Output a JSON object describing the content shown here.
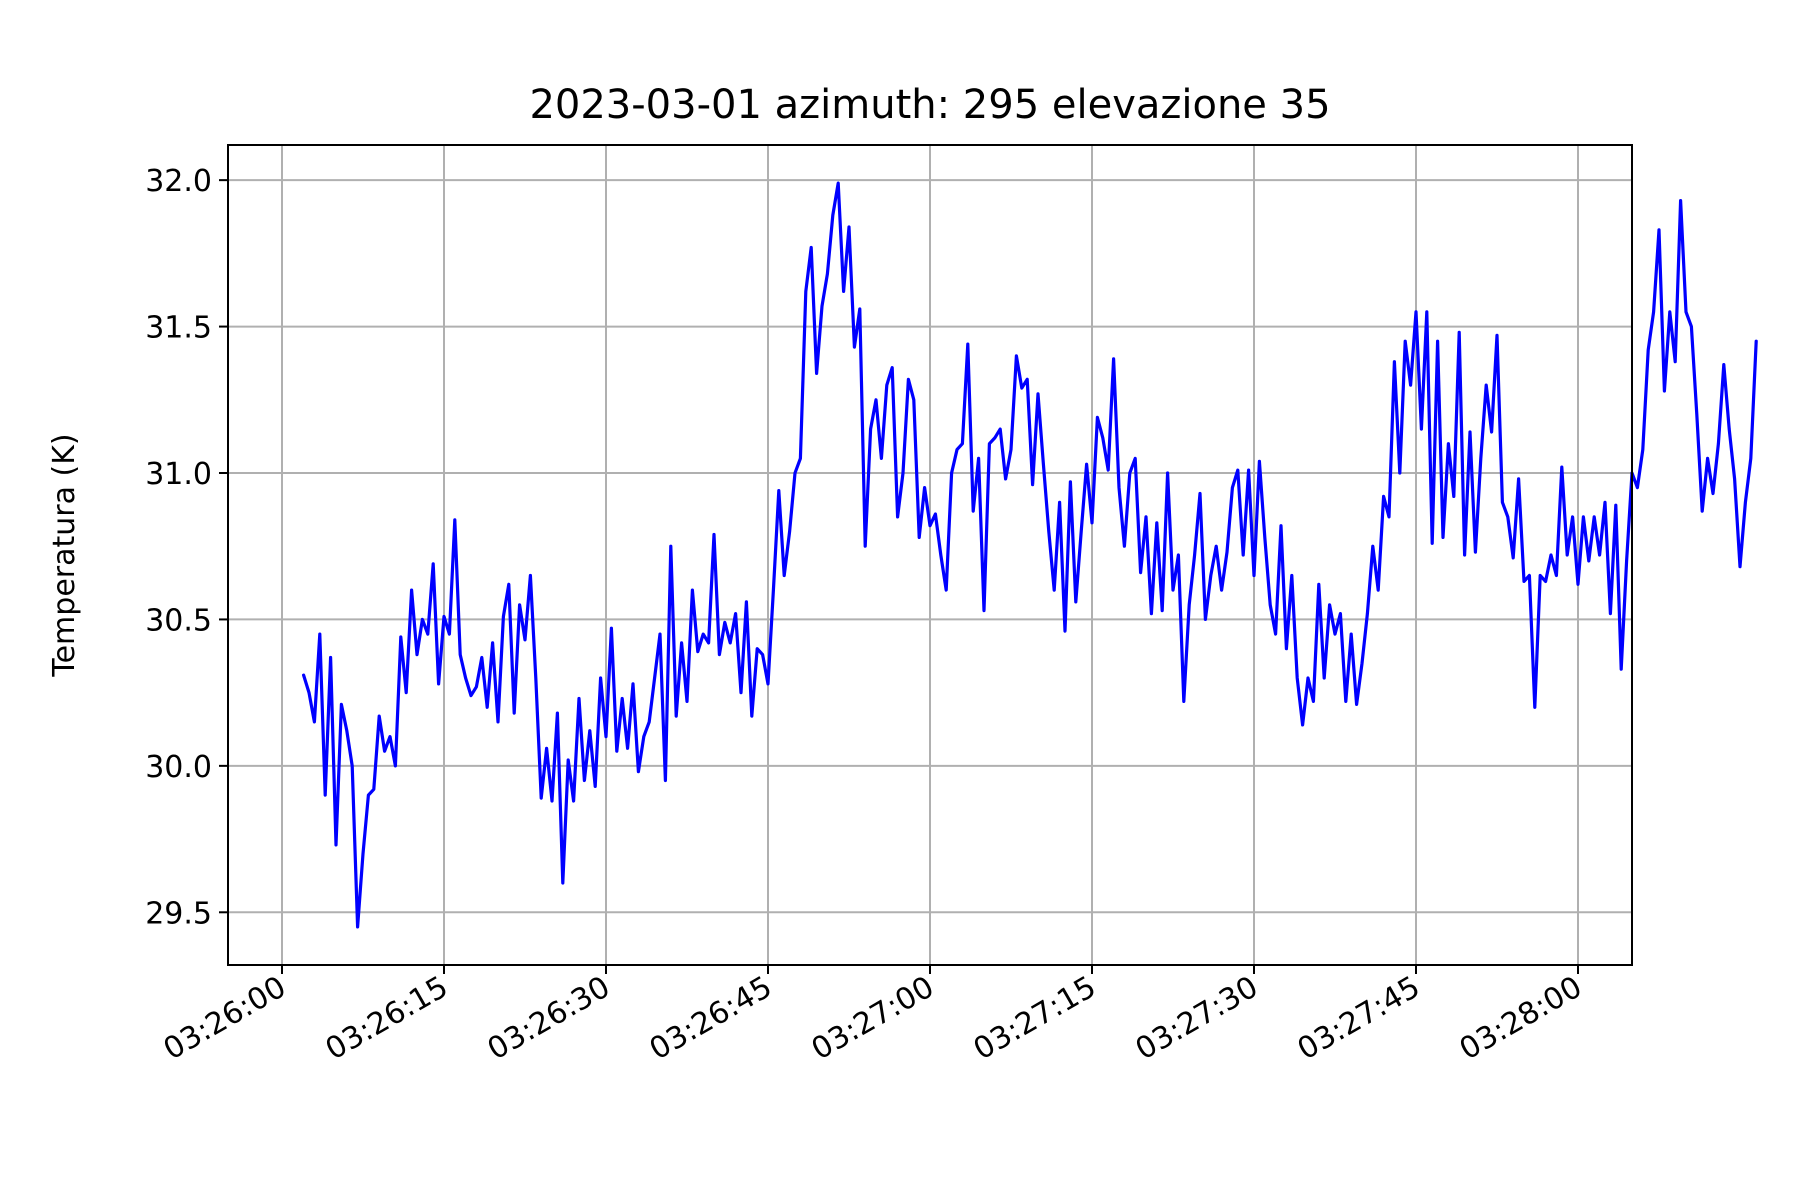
{
  "chart_data": {
    "type": "line",
    "title": "2023-03-01  azimuth: 295 elevazione 35",
    "xlabel": "",
    "ylabel": "Temperatura (K)",
    "xlim": [
      "03:25:55",
      "03:28:05"
    ],
    "ylim": [
      29.32,
      32.12
    ],
    "x_ticks": [
      "03:26:00",
      "03:26:15",
      "03:26:30",
      "03:26:45",
      "03:27:00",
      "03:27:15",
      "03:27:30",
      "03:27:45",
      "03:28:00"
    ],
    "y_ticks": [
      "29.5",
      "30.0",
      "30.5",
      "31.0",
      "31.5",
      "32.0"
    ],
    "grid": true,
    "series": [
      {
        "color": "#0000ff",
        "x_start": "03:26:02",
        "x_step_seconds": 0.5,
        "values": [
          30.31,
          30.25,
          30.15,
          30.45,
          29.9,
          30.37,
          29.73,
          30.21,
          30.12,
          30.0,
          29.45,
          29.7,
          29.9,
          29.92,
          30.17,
          30.05,
          30.1,
          30.0,
          30.44,
          30.25,
          30.6,
          30.38,
          30.5,
          30.45,
          30.69,
          30.28,
          30.51,
          30.45,
          30.84,
          30.38,
          30.3,
          30.24,
          30.27,
          30.37,
          30.2,
          30.42,
          30.15,
          30.51,
          30.62,
          30.18,
          30.55,
          30.43,
          30.65,
          30.3,
          29.89,
          30.06,
          29.88,
          30.18,
          29.6,
          30.02,
          29.88,
          30.23,
          29.95,
          30.12,
          29.93,
          30.3,
          30.1,
          30.47,
          30.05,
          30.23,
          30.06,
          30.28,
          29.98,
          30.1,
          30.15,
          30.3,
          30.45,
          29.95,
          30.75,
          30.17,
          30.42,
          30.22,
          30.6,
          30.39,
          30.45,
          30.42,
          30.79,
          30.38,
          30.49,
          30.42,
          30.52,
          30.25,
          30.56,
          30.17,
          30.4,
          30.38,
          30.28,
          30.6,
          30.94,
          30.65,
          30.8,
          31.0,
          31.05,
          31.62,
          31.77,
          31.34,
          31.57,
          31.68,
          31.88,
          31.99,
          31.62,
          31.84,
          31.43,
          31.56,
          30.75,
          31.15,
          31.25,
          31.05,
          31.3,
          31.36,
          30.85,
          31.0,
          31.32,
          31.25,
          30.78,
          30.95,
          30.82,
          30.86,
          30.72,
          30.6,
          31.0,
          31.08,
          31.1,
          31.44,
          30.87,
          31.05,
          30.53,
          31.1,
          31.12,
          31.15,
          30.98,
          31.08,
          31.4,
          31.29,
          31.32,
          30.96,
          31.27,
          31.03,
          30.8,
          30.6,
          30.9,
          30.46,
          30.97,
          30.56,
          30.8,
          31.03,
          30.83,
          31.19,
          31.12,
          31.01,
          31.39,
          30.95,
          30.75,
          31.0,
          31.05,
          30.66,
          30.85,
          30.52,
          30.83,
          30.53,
          31.0,
          30.6,
          30.72,
          30.22,
          30.55,
          30.72,
          30.93,
          30.5,
          30.65,
          30.75,
          30.6,
          30.73,
          30.95,
          31.01,
          30.72,
          31.01,
          30.65,
          31.04,
          30.78,
          30.55,
          30.45,
          30.82,
          30.4,
          30.65,
          30.3,
          30.14,
          30.3,
          30.22,
          30.62,
          30.3,
          30.55,
          30.45,
          30.52,
          30.22,
          30.45,
          30.21,
          30.35,
          30.52,
          30.75,
          30.6,
          30.92,
          30.85,
          31.38,
          31.0,
          31.45,
          31.3,
          31.55,
          31.15,
          31.55,
          30.76,
          31.45,
          30.78,
          31.1,
          30.92,
          31.48,
          30.72,
          31.14,
          30.73,
          31.05,
          31.3,
          31.14,
          31.47,
          30.9,
          30.85,
          30.71,
          30.98,
          30.63,
          30.65,
          30.2,
          30.65,
          30.63,
          30.72,
          30.65,
          31.02,
          30.72,
          30.85,
          30.62,
          30.85,
          30.7,
          30.85,
          30.72,
          30.9,
          30.52,
          30.89,
          30.33,
          30.7,
          31.0,
          30.95,
          31.08,
          31.42,
          31.55,
          31.83,
          31.28,
          31.55,
          31.38,
          31.93,
          31.55,
          31.5,
          31.2,
          30.87,
          31.05,
          30.93,
          31.1,
          31.37,
          31.15,
          30.98,
          30.68,
          30.9,
          31.05,
          31.45
        ]
      }
    ]
  }
}
